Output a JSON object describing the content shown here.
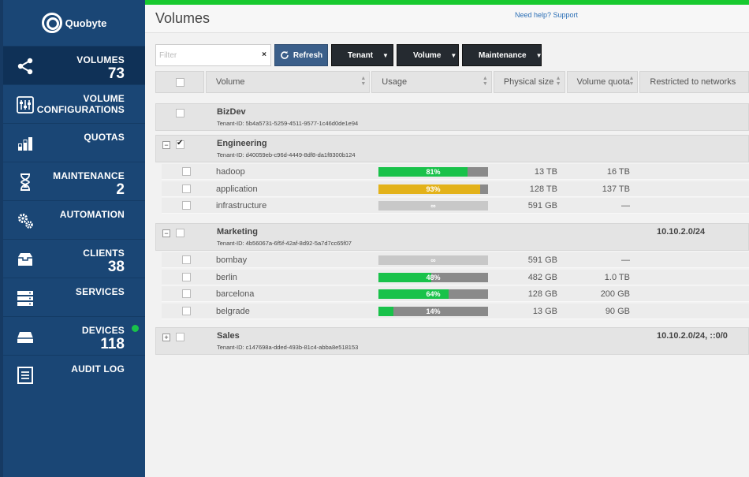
{
  "app": {
    "name": "Quobyte"
  },
  "sidebar": {
    "items": [
      {
        "label": "VOLUMES",
        "count": "73",
        "icon": "share-icon",
        "active": true
      },
      {
        "label": "VOLUME\nCONFIGURATIONS",
        "count": "",
        "icon": "sliders-icon"
      },
      {
        "label": "QUOTAS",
        "count": "",
        "icon": "bar-chart-icon"
      },
      {
        "label": "MAINTENANCE",
        "count": "2",
        "icon": "hourglass-icon"
      },
      {
        "label": "AUTOMATION",
        "count": "",
        "icon": "gears-icon"
      },
      {
        "label": "CLIENTS",
        "count": "38",
        "icon": "inbox-icon"
      },
      {
        "label": "SERVICES",
        "count": "",
        "icon": "server-icon"
      },
      {
        "label": "DEVICES",
        "count": "118",
        "icon": "drive-icon",
        "status_color": "#19c24a"
      },
      {
        "label": "AUDIT LOG",
        "count": "",
        "icon": "document-icon"
      }
    ]
  },
  "header": {
    "title": "Volumes",
    "help": "Need help? Support"
  },
  "toolbar": {
    "filter_placeholder": "Filter",
    "clear": "×",
    "refresh": "Refresh",
    "tenant": "Tenant",
    "volume": "Volume",
    "maintenance": "Maintenance"
  },
  "columns": [
    "Volume",
    "Usage",
    "Physical size",
    "Volume quota",
    "Restricted to networks"
  ],
  "groups": [
    {
      "name": "BizDev",
      "tenant_id": "Tenant-ID: 5b4a5731-5259-4511-9577-1c46d0de1e94",
      "network": "",
      "expanded": null,
      "checked": false,
      "rows": []
    },
    {
      "name": "Engineering",
      "tenant_id": "Tenant-ID: d40059eb-c96d-4449-8df8-da1f8300b124",
      "network": "",
      "expanded": true,
      "checked": true,
      "rows": [
        {
          "name": "hadoop",
          "usage": 0.81,
          "usage_label": "81%",
          "color": "#19c24a",
          "physical": "13 TB",
          "quota": "16 TB"
        },
        {
          "name": "application",
          "usage": 0.93,
          "usage_label": "93%",
          "color": "#e3b21a",
          "physical": "128 TB",
          "quota": "137 TB"
        },
        {
          "name": "infrastructure",
          "usage": null,
          "usage_label": "∞",
          "color": "",
          "physical": "591 GB",
          "quota": "—"
        }
      ]
    },
    {
      "name": "Marketing",
      "tenant_id": "Tenant-ID: 4b56067a-6f5f-42af-8d92-5a7d7cc65f07",
      "network": "10.10.2.0/24",
      "expanded": true,
      "checked": false,
      "rows": [
        {
          "name": "bombay",
          "usage": null,
          "usage_label": "∞",
          "color": "",
          "physical": "591 GB",
          "quota": "—"
        },
        {
          "name": "berlin",
          "usage": 0.48,
          "usage_label": "48%",
          "color": "#19c24a",
          "physical": "482 GB",
          "quota": "1.0 TB"
        },
        {
          "name": "barcelona",
          "usage": 0.64,
          "usage_label": "64%",
          "color": "#19c24a",
          "physical": "128 GB",
          "quota": "200 GB"
        },
        {
          "name": "belgrade",
          "usage": 0.14,
          "usage_label": "14%",
          "color": "#19c24a",
          "physical": "13 GB",
          "quota": "90 GB"
        }
      ]
    },
    {
      "name": "Sales",
      "tenant_id": "Tenant-ID: c147698a-dded-493b-81c4-abba8e518153",
      "network": "10.10.2.0/24, ::0/0",
      "expanded": false,
      "checked": false,
      "rows": []
    }
  ]
}
